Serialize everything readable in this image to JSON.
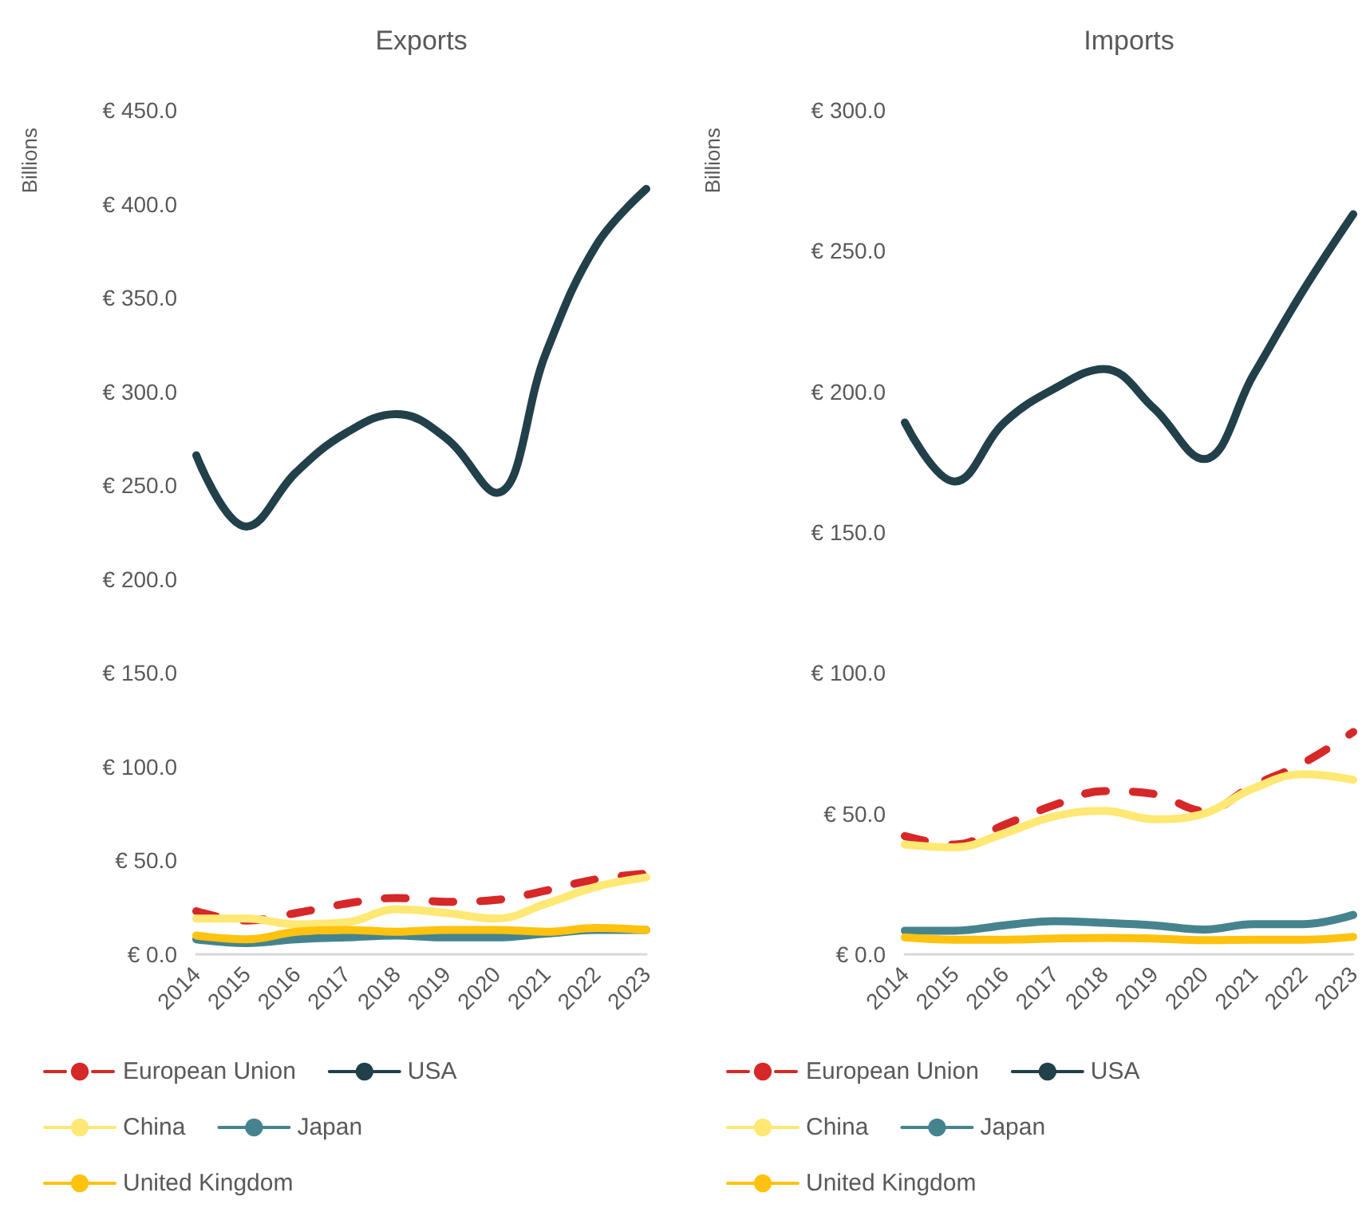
{
  "chart_data": [
    {
      "type": "line",
      "title": "Exports",
      "ylabel": "Billions",
      "categories": [
        "2014",
        "2015",
        "2016",
        "2017",
        "2018",
        "2019",
        "2020",
        "2021",
        "2022",
        "2023"
      ],
      "series": [
        {
          "name": "European Union",
          "color": "#d62828",
          "line_style": "dashed",
          "values": [
            23,
            18,
            22,
            27,
            30,
            28,
            29,
            34,
            40,
            43
          ]
        },
        {
          "name": "USA",
          "color": "#22404a",
          "values": [
            266,
            228,
            257,
            278,
            288,
            275,
            246,
            321,
            378,
            408
          ]
        },
        {
          "name": "China",
          "color": "#ffe873",
          "values": [
            19,
            19,
            16,
            17,
            24,
            22,
            19,
            27,
            36,
            41
          ]
        },
        {
          "name": "Japan",
          "color": "#45848f",
          "values": [
            8,
            6,
            8,
            9,
            10,
            9,
            9,
            11,
            13,
            13
          ]
        },
        {
          "name": "United Kingdom",
          "color": "#ffc20e",
          "values": [
            10,
            8,
            12,
            13,
            12,
            13,
            13,
            12,
            14,
            13
          ]
        }
      ],
      "ylim": [
        0,
        450
      ],
      "yticks": [
        {
          "value": 0,
          "label": "€ 0.0"
        },
        {
          "value": 50,
          "label": "€ 50.0"
        },
        {
          "value": 100,
          "label": "€ 100.0"
        },
        {
          "value": 150,
          "label": "€ 150.0"
        },
        {
          "value": 200,
          "label": "€ 200.0"
        },
        {
          "value": 250,
          "label": "€ 250.0"
        },
        {
          "value": 300,
          "label": "€ 300.0"
        },
        {
          "value": 350,
          "label": "€ 350.0"
        },
        {
          "value": 400,
          "label": "€ 400.0"
        },
        {
          "value": 450,
          "label": "€ 450.0"
        }
      ],
      "legend": "bottom"
    },
    {
      "type": "line",
      "title": "Imports",
      "ylabel": "Billions",
      "categories": [
        "2014",
        "2015",
        "2016",
        "2017",
        "2018",
        "2019",
        "2020",
        "2021",
        "2022",
        "2023"
      ],
      "series": [
        {
          "name": "European Union",
          "color": "#d62828",
          "line_style": "dashed",
          "values": [
            42,
            39,
            46,
            53,
            58,
            57,
            51,
            60,
            68,
            79
          ]
        },
        {
          "name": "USA",
          "color": "#22404a",
          "values": [
            189,
            168,
            189,
            201,
            208,
            194,
            176,
            206,
            236,
            263
          ]
        },
        {
          "name": "China",
          "color": "#ffe873",
          "values": [
            39,
            38,
            43,
            49,
            51,
            48,
            50,
            59,
            64,
            62
          ]
        },
        {
          "name": "Japan",
          "color": "#45848f",
          "values": [
            8.4,
            8.4,
            10.3,
            11.8,
            11.2,
            10.3,
            8.8,
            10.7,
            10.7,
            14
          ]
        },
        {
          "name": "United Kingdom",
          "color": "#ffc20e",
          "values": [
            6,
            5.2,
            5.2,
            5.6,
            5.8,
            5.6,
            5,
            5.2,
            5.2,
            6.2
          ]
        }
      ],
      "ylim": [
        0,
        300
      ],
      "yticks": [
        {
          "value": 0,
          "label": "€ 0.0"
        },
        {
          "value": 50,
          "label": "€ 50.0"
        },
        {
          "value": 100,
          "label": "€ 100.0"
        },
        {
          "value": 150,
          "label": "€ 150.0"
        },
        {
          "value": 200,
          "label": "€ 200.0"
        },
        {
          "value": 250,
          "label": "€ 250.0"
        },
        {
          "value": 300,
          "label": "€ 300.0"
        }
      ],
      "legend": "bottom"
    }
  ]
}
